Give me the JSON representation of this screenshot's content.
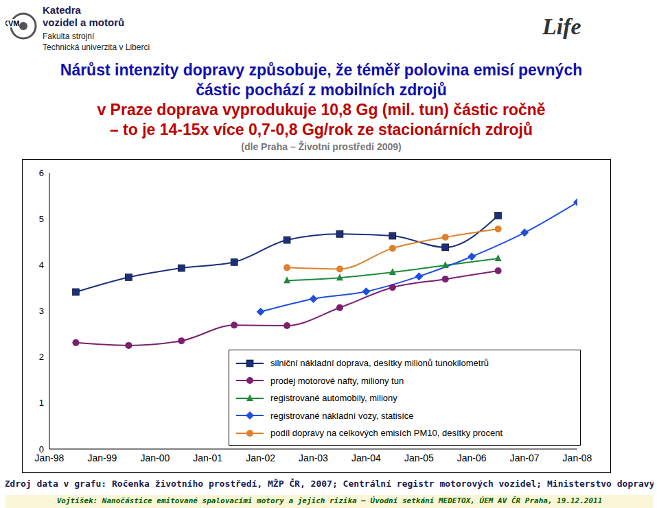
{
  "header": {
    "logo_left": "KVM",
    "department": [
      "Katedra",
      "vozidel a motorů"
    ],
    "faculty": "Fakulta strojní",
    "university": "Technická univerzita v Liberci",
    "logo_right": "Life"
  },
  "chart_data": {
    "type": "line",
    "title": [
      "Nárůst intenzity dopravy způsobuje, že téměř polovina emisí pevných",
      "částic pochází z mobilních zdrojů"
    ],
    "subtitle": [
      "v Praze doprava vyprodukuje 10,8 Gg (mil. tun) částic ročně",
      "– to je 14-15x více 0,7-0,8 Gg/rok ze stacionárních zdrojů"
    ],
    "note": "(dle Praha – Životní prostředí 2009)",
    "xlim": [
      1998,
      2008
    ],
    "xticks": [
      {
        "value": 1998,
        "label": "Jan-98"
      },
      {
        "value": 1999,
        "label": "Jan-99"
      },
      {
        "value": 2000,
        "label": "Jan-00"
      },
      {
        "value": 2001,
        "label": "Jan-01"
      },
      {
        "value": 2002,
        "label": "Jan-02"
      },
      {
        "value": 2003,
        "label": "Jan-03"
      },
      {
        "value": 2004,
        "label": "Jan-04"
      },
      {
        "value": 2005,
        "label": "Jan-05"
      },
      {
        "value": 2006,
        "label": "Jan-06"
      },
      {
        "value": 2007,
        "label": "Jan-07"
      },
      {
        "value": 2008,
        "label": "Jan-08"
      }
    ],
    "ylim": [
      0,
      6
    ],
    "yticks": [
      0,
      1,
      2,
      3,
      4,
      5,
      6
    ],
    "grid": false,
    "legend": "lower right",
    "series": [
      {
        "name": "silniční nákladní doprava, desítky milionů tunokilometrů",
        "color": "#1c2f7a",
        "marker": "square",
        "x": [
          1998.5,
          1999.5,
          2000.5,
          2001.5,
          2002.5,
          2003.5,
          2004.5,
          2005.5,
          2006.5
        ],
        "values": [
          3.41,
          3.73,
          3.93,
          4.06,
          4.54,
          4.67,
          4.63,
          4.38,
          5.07
        ]
      },
      {
        "name": "prodej motorové nafty, miliony tun",
        "color": "#7b1f6e",
        "marker": "circle",
        "x": [
          1998.5,
          1999.5,
          2000.5,
          2001.5,
          2002.5,
          2003.5,
          2004.5,
          2005.5,
          2006.5
        ],
        "values": [
          2.31,
          2.25,
          2.35,
          2.69,
          2.68,
          3.07,
          3.51,
          3.69,
          3.87
        ]
      },
      {
        "name": "registrované automobily, miliony",
        "color": "#1e8a3a",
        "marker": "triangle",
        "x": [
          2002.5,
          2003.5,
          2004.5,
          2005.5,
          2006.5
        ],
        "values": [
          3.66,
          3.72,
          3.84,
          3.99,
          4.14
        ]
      },
      {
        "name": "registrované nákladní vozy, statisíce",
        "color": "#1f4fe0",
        "marker": "diamond",
        "x": [
          2002,
          2003,
          2004,
          2005,
          2006,
          2007,
          2008
        ],
        "values": [
          2.98,
          3.26,
          3.42,
          3.75,
          4.18,
          4.7,
          5.36
        ]
      },
      {
        "name": "podíl dopravy na celkových emisích PM10, desítky procent",
        "color": "#e0802c",
        "marker": "circle",
        "x": [
          2002.5,
          2003.5,
          2004.5,
          2005.5,
          2006.5
        ],
        "values": [
          3.94,
          3.91,
          4.36,
          4.6,
          4.78
        ]
      }
    ]
  },
  "source": "Zdroj data v grafu: Ročenka životního prostředí, MŽP ČR, 2007; Centrální registr motorových vozidel; Ministerstvo dopravy",
  "footer": "Vojtíšek: Nanočástice emitované spalovacími motory a jejich rizika – Úvodní setkání MEDETOX, ÚEM AV ČR Praha, 19.12.2011"
}
